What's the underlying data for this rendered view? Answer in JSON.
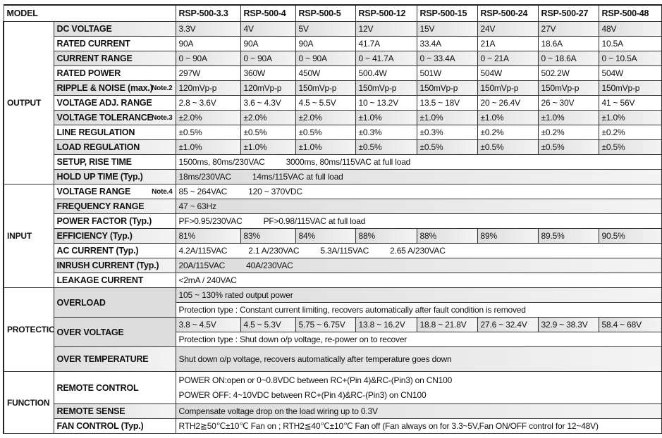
{
  "header": {
    "model_label": "MODEL",
    "models": [
      "RSP-500-3.3",
      "RSP-500-4",
      "RSP-500-5",
      "RSP-500-12",
      "RSP-500-15",
      "RSP-500-24",
      "RSP-500-27",
      "RSP-500-48"
    ]
  },
  "sections": [
    {
      "name": "OUTPUT",
      "rows": [
        {
          "label": "DC VOLTAGE",
          "values": [
            "3.3V",
            "4V",
            "5V",
            "12V",
            "15V",
            "24V",
            "27V",
            "48V"
          ]
        },
        {
          "label": "RATED CURRENT",
          "values": [
            "90A",
            "90A",
            "90A",
            "41.7A",
            "33.4A",
            "21A",
            "18.6A",
            "10.5A"
          ]
        },
        {
          "label": "CURRENT RANGE",
          "values": [
            "0 ~ 90A",
            "0 ~ 90A",
            "0 ~ 90A",
            "0 ~ 41.7A",
            "0 ~ 33.4A",
            "0 ~ 21A",
            "0 ~ 18.6A",
            "0 ~ 10.5A"
          ]
        },
        {
          "label": "RATED POWER",
          "values": [
            "297W",
            "360W",
            "450W",
            "500.4W",
            "501W",
            "504W",
            "502.2W",
            "504W"
          ]
        },
        {
          "label": "RIPPLE & NOISE (max.)",
          "note": "Note.2",
          "values": [
            "120mVp-p",
            "120mVp-p",
            "150mVp-p",
            "150mVp-p",
            "150mVp-p",
            "150mVp-p",
            "150mVp-p",
            "150mVp-p"
          ]
        },
        {
          "label": "VOLTAGE ADJ. RANGE",
          "values": [
            "2.8 ~ 3.6V",
            "3.6 ~ 4.3V",
            "4.5 ~ 5.5V",
            "10 ~ 13.2V",
            "13.5 ~ 18V",
            "20 ~ 26.4V",
            "26 ~ 30V",
            "41 ~ 56V"
          ]
        },
        {
          "label": "VOLTAGE TOLERANCE",
          "note": "Note.3",
          "values": [
            "±2.0%",
            "±2.0%",
            "±2.0%",
            "±1.0%",
            "±1.0%",
            "±1.0%",
            "±1.0%",
            "±1.0%"
          ]
        },
        {
          "label": "LINE REGULATION",
          "values": [
            "±0.5%",
            "±0.5%",
            "±0.5%",
            "±0.3%",
            "±0.3%",
            "±0.2%",
            "±0.2%",
            "±0.2%"
          ]
        },
        {
          "label": "LOAD REGULATION",
          "values": [
            "±1.0%",
            "±1.0%",
            "±1.0%",
            "±0.5%",
            "±0.5%",
            "±0.5%",
            "±0.5%",
            "±0.5%"
          ]
        },
        {
          "label": "SETUP, RISE TIME",
          "span": [
            "1500ms, 80ms/230VAC",
            "3000ms, 80ms/115VAC at full load"
          ]
        },
        {
          "label": "HOLD UP TIME (Typ.)",
          "span": [
            "18ms/230VAC",
            "14ms/115VAC at full load"
          ]
        }
      ]
    },
    {
      "name": "INPUT",
      "rows": [
        {
          "label": "VOLTAGE RANGE",
          "note": "Note.4",
          "span": [
            "85 ~ 264VAC",
            "120 ~ 370VDC"
          ]
        },
        {
          "label": "FREQUENCY RANGE",
          "span": [
            "47 ~ 63Hz"
          ]
        },
        {
          "label": "POWER FACTOR (Typ.)",
          "span": [
            "PF>0.95/230VAC",
            "PF>0.98/115VAC at full load"
          ]
        },
        {
          "label": "EFFICIENCY (Typ.)",
          "values": [
            "81%",
            "83%",
            "84%",
            "88%",
            "88%",
            "89%",
            "89.5%",
            "90.5%"
          ]
        },
        {
          "label": "AC CURRENT (Typ.)",
          "span": [
            "4.2A/115VAC",
            "2.1 A/230VAC",
            "5.3A/115VAC",
            "2.65 A/230VAC"
          ]
        },
        {
          "label": "INRUSH CURRENT (Typ.)",
          "span": [
            "20A/115VAC",
            "40A/230VAC"
          ]
        },
        {
          "label": "LEAKAGE CURRENT",
          "span": [
            "<2mA / 240VAC"
          ]
        }
      ]
    },
    {
      "name": "PROTECTION",
      "rows": [
        {
          "label": "OVERLOAD",
          "sub": [
            {
              "span": [
                "105 ~ 130% rated output power"
              ]
            },
            {
              "span": [
                "Protection type : Constant current limiting, recovers automatically after fault condition is removed"
              ]
            }
          ]
        },
        {
          "label": "OVER VOLTAGE",
          "sub": [
            {
              "values": [
                "3.8 ~ 4.5V",
                "4.5 ~ 5.3V",
                "5.75 ~ 6.75V",
                "13.8 ~ 16.2V",
                "18.8 ~ 21.8V",
                "27.6 ~ 32.4V",
                "32.9 ~ 38.3V",
                "58.4 ~ 68V"
              ]
            },
            {
              "span": [
                "Protection type : Shut down o/p voltage, re-power on to recover"
              ]
            }
          ]
        },
        {
          "label": "OVER TEMPERATURE",
          "tall": true,
          "span": [
            "Shut down o/p voltage, recovers automatically after temperature goes down"
          ]
        }
      ]
    },
    {
      "name": "FUNCTION",
      "rows": [
        {
          "label": "REMOTE CONTROL",
          "lines": [
            "POWER ON:open or 0~0.8VDC between RC+(Pin 4)&RC-(Pin3) on CN100",
            "POWER OFF: 4~10VDC between RC+(Pin 4)&RC-(Pin3) on CN100"
          ]
        },
        {
          "label": "REMOTE SENSE",
          "span": [
            "Compensate voltage drop on the load wiring up to 0.3V"
          ]
        },
        {
          "label": "FAN CONTROL (Typ.)",
          "span": [
            "RTH2≧50℃±10℃ Fan on ; RTH2≦40℃±10℃ Fan off (Fan always on for 3.3~5V,Fan ON/OFF control for 12~48V)"
          ]
        }
      ]
    }
  ]
}
